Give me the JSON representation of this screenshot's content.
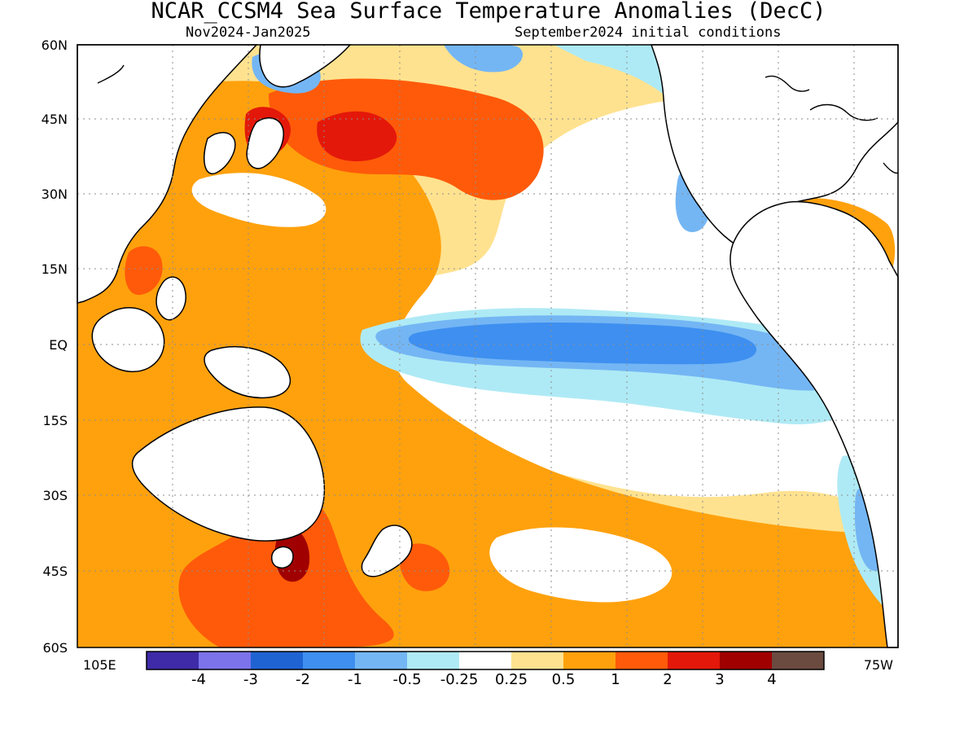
{
  "title": "NCAR_CCSM4 Sea Surface Temperature Anomalies (DecC)",
  "subtitle_left": "Nov2024-Jan2025",
  "subtitle_right": "September2024 initial conditions",
  "axes": {
    "left_labels": [
      "60N",
      "45N",
      "30N",
      "15N",
      "EQ",
      "15S",
      "30S",
      "45S",
      "60S"
    ],
    "bottom_left_label": "105E",
    "bottom_right_label": "75W"
  },
  "legend": {
    "labels": [
      "-4",
      "-3",
      "-2",
      "-1",
      "-0.5",
      "-0.25",
      "0.25",
      "0.5",
      "1",
      "2",
      "3",
      "4"
    ],
    "colors": [
      "#3f2aa8",
      "#7c73eb",
      "#1f63d3",
      "#3e8ff0",
      "#74b6f4",
      "#aeeaf5",
      "#ffffff",
      "#ffe28f",
      "#ffa10d",
      "#ff5a0a",
      "#e3180a",
      "#a00000",
      "#6b4a40"
    ]
  }
}
